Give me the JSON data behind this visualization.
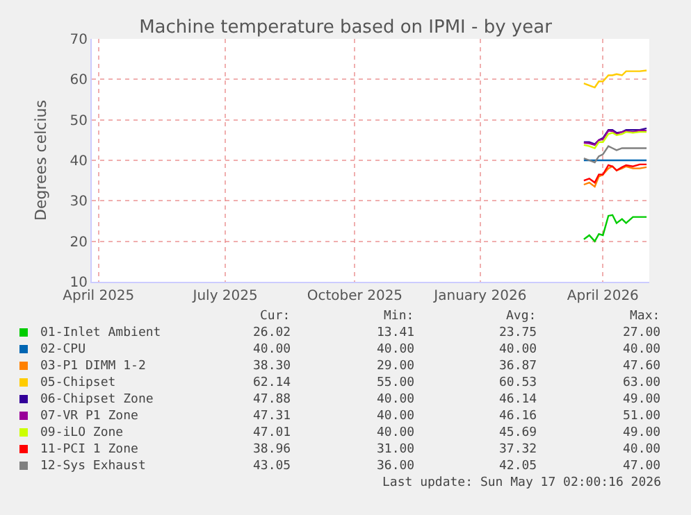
{
  "chart_data": {
    "type": "line",
    "title": "Machine temperature based on IPMI - by year",
    "ylabel": "Degrees celcius",
    "x": [
      "2026-04-01",
      "2026-04-05",
      "2026-04-09",
      "2026-04-12",
      "2026-04-15",
      "2026-04-19",
      "2026-04-22",
      "2026-04-25",
      "2026-04-29",
      "2026-05-02",
      "2026-05-07",
      "2026-05-12",
      "2026-05-17"
    ],
    "series": [
      {
        "name": "01-Inlet Ambient",
        "color": "#00cc00",
        "values": [
          20.5,
          21.5,
          20,
          21.8,
          21.5,
          26.3,
          26.5,
          24.5,
          25.5,
          24.5,
          26,
          26,
          26
        ]
      },
      {
        "name": "02-CPU",
        "color": "#0066b3",
        "values": [
          40,
          40,
          40,
          40,
          40,
          40,
          40,
          40,
          40,
          40,
          40,
          40,
          40
        ]
      },
      {
        "name": "03-P1 DIMM 1-2",
        "color": "#ff8000",
        "values": [
          34,
          34.5,
          33.5,
          36,
          36.5,
          38,
          38.5,
          37.5,
          38,
          38.5,
          38,
          38,
          38.3
        ]
      },
      {
        "name": "05-Chipset",
        "color": "#ffcc00",
        "values": [
          59,
          58.5,
          58,
          59.5,
          59.5,
          61,
          61,
          61.3,
          61,
          62,
          62,
          62,
          62.2
        ]
      },
      {
        "name": "06-Chipset Zone",
        "color": "#330099",
        "values": [
          44.5,
          44.5,
          44,
          45,
          45.5,
          47.5,
          47.5,
          46.8,
          47,
          47.5,
          47.5,
          47.5,
          47.9
        ]
      },
      {
        "name": "07-VR P1 Zone",
        "color": "#990099",
        "values": [
          44.3,
          44.2,
          43.8,
          45,
          45.2,
          47.3,
          47.2,
          46.5,
          47,
          47.2,
          47,
          47.4,
          47.3
        ]
      },
      {
        "name": "09-iLO Zone",
        "color": "#ccff00",
        "values": [
          43.8,
          43.5,
          43,
          44.5,
          44.5,
          46.5,
          46.8,
          46.2,
          46.5,
          47,
          46.8,
          47,
          47
        ]
      },
      {
        "name": "11-PCI 1 Zone",
        "color": "#ff0000",
        "values": [
          35,
          35.5,
          34.5,
          36.5,
          36.5,
          38.8,
          38.5,
          37.5,
          38.3,
          38.8,
          38.5,
          39,
          39
        ]
      },
      {
        "name": "12-Sys Exhaust",
        "color": "#808080",
        "values": [
          40.5,
          40,
          39.5,
          41,
          41.5,
          43.5,
          43,
          42.5,
          43,
          43,
          43,
          43,
          43
        ]
      }
    ],
    "xlim": [
      "2025-04-05",
      "2026-05-19"
    ],
    "xticks": [
      {
        "value": "2025-04-10",
        "label": "April 2025"
      },
      {
        "value": "2025-07-12",
        "label": "July 2025"
      },
      {
        "value": "2025-10-15",
        "label": "October 2025"
      },
      {
        "value": "2026-01-15",
        "label": "January 2026"
      },
      {
        "value": "2026-04-15",
        "label": "April 2026"
      }
    ],
    "ylim": [
      10,
      70
    ],
    "yticks": [
      10,
      20,
      30,
      40,
      50,
      60,
      70
    ],
    "grid": true,
    "legend": "bottom",
    "marker": "none",
    "line_style": "solid",
    "annotations": [
      "Cur:",
      "Min:",
      "Avg:",
      "Max:",
      "26.02",
      "13.41",
      "23.75",
      "27.00",
      "40.00",
      "40.00",
      "40.00",
      "40.00",
      "38.30",
      "29.00",
      "36.87",
      "47.60",
      "62.14",
      "55.00",
      "60.53",
      "63.00",
      "47.88",
      "40.00",
      "46.14",
      "49.00",
      "47.31",
      "40.00",
      "46.16",
      "51.00",
      "47.01",
      "40.00",
      "45.69",
      "49.00",
      "38.96",
      "31.00",
      "37.32",
      "40.00",
      "43.05",
      "36.00",
      "42.05",
      "47.00",
      "Last update: Sun May 17 02:00:16 2026"
    ]
  }
}
